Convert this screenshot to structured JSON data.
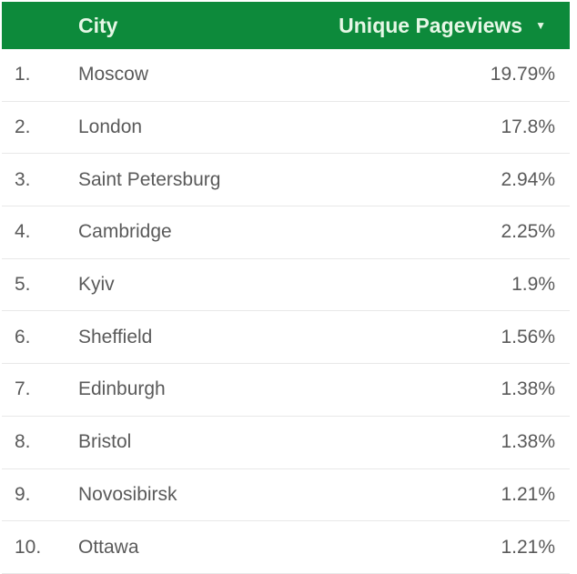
{
  "header": {
    "city": "City",
    "pageviews": "Unique Pageviews",
    "sort_icon": "caret-down-icon"
  },
  "colors": {
    "header_bg": "#0d8a3b"
  },
  "rows": [
    {
      "index": "1.",
      "city": "Moscow",
      "value": "19.79%"
    },
    {
      "index": "2.",
      "city": "London",
      "value": "17.8%"
    },
    {
      "index": "3.",
      "city": "Saint Petersburg",
      "value": "2.94%"
    },
    {
      "index": "4.",
      "city": "Cambridge",
      "value": "2.25%"
    },
    {
      "index": "5.",
      "city": "Kyiv",
      "value": "1.9%"
    },
    {
      "index": "6.",
      "city": "Sheffield",
      "value": "1.56%"
    },
    {
      "index": "7.",
      "city": "Edinburgh",
      "value": "1.38%"
    },
    {
      "index": "8.",
      "city": "Bristol",
      "value": "1.38%"
    },
    {
      "index": "9.",
      "city": "Novosibirsk",
      "value": "1.21%"
    },
    {
      "index": "10.",
      "city": "Ottawa",
      "value": "1.21%"
    }
  ]
}
